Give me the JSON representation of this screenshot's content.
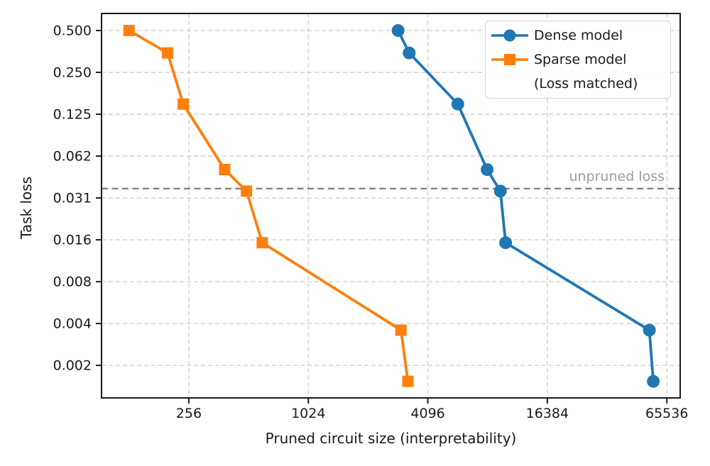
{
  "chart_data": {
    "type": "line",
    "title": "",
    "xlabel": "Pruned circuit size (interpretability)",
    "ylabel": "Task loss",
    "x_scale": "log",
    "y_scale": "log",
    "xlim": [
      93,
      76500
    ],
    "ylim": [
      0.00114,
      0.663
    ],
    "grid": "both-dashed",
    "grid_color": "#cccccc",
    "legend_position": "upper right",
    "x_ticks": [
      {
        "value": 256,
        "label": "256"
      },
      {
        "value": 1024,
        "label": "1024"
      },
      {
        "value": 4096,
        "label": "4096"
      },
      {
        "value": 16384,
        "label": "16384"
      },
      {
        "value": 65536,
        "label": "65536"
      }
    ],
    "y_ticks": [
      {
        "value": 0.5,
        "label": "0.500"
      },
      {
        "value": 0.25,
        "label": "0.250"
      },
      {
        "value": 0.125,
        "label": "0.125"
      },
      {
        "value": 0.0625,
        "label": "0.062"
      },
      {
        "value": 0.03125,
        "label": "0.031"
      },
      {
        "value": 0.015625,
        "label": "0.016"
      },
      {
        "value": 0.0078125,
        "label": "0.008"
      },
      {
        "value": 0.00390625,
        "label": "0.004"
      },
      {
        "value": 0.001953125,
        "label": "0.002"
      }
    ],
    "series": [
      {
        "name": "Dense model",
        "color": "#1f77b4",
        "marker": "circle",
        "points": [
          [
            2900,
            0.5
          ],
          [
            3300,
            0.345
          ],
          [
            5800,
            0.148
          ],
          [
            8150,
            0.05
          ],
          [
            9500,
            0.035
          ],
          [
            10100,
            0.0149
          ],
          [
            53500,
            0.0035
          ],
          [
            56000,
            0.0015
          ]
        ]
      },
      {
        "name": "Sparse model",
        "name_line2": "(Loss matched)",
        "color": "#ff7f0e",
        "marker": "square",
        "points": [
          [
            128,
            0.5
          ],
          [
            200,
            0.345
          ],
          [
            240,
            0.148
          ],
          [
            388,
            0.05
          ],
          [
            500,
            0.035
          ],
          [
            600,
            0.0149
          ],
          [
            3000,
            0.0035
          ],
          [
            3250,
            0.0015
          ]
        ]
      }
    ],
    "annotation": {
      "text": "unpruned loss",
      "y": 0.0365,
      "text_color": "#9e9e9e",
      "line_color": "#7f7f7f"
    }
  }
}
